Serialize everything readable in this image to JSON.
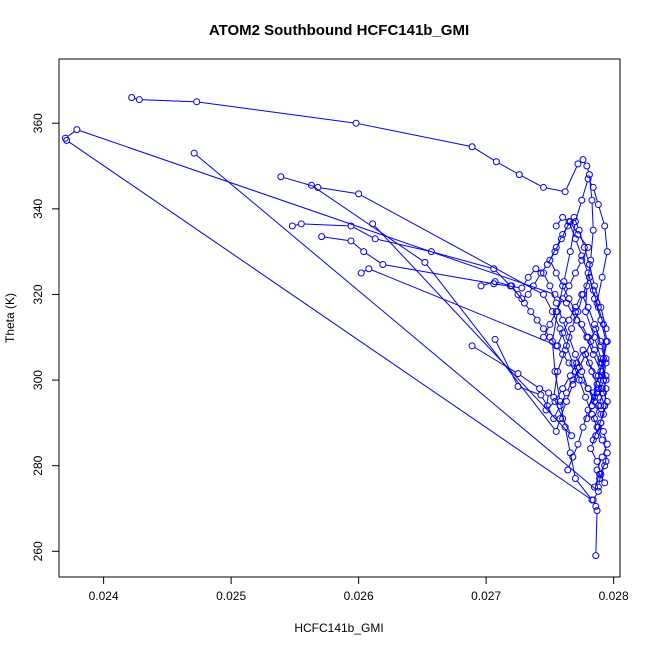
{
  "chart_data": {
    "type": "line",
    "title": "ATOM2 Southbound HCFC141b_GMI",
    "xlabel": "HCFC141b_GMI",
    "ylabel": "Theta (K)",
    "xlim": [
      0.02365,
      0.02805
    ],
    "ylim": [
      254,
      375
    ],
    "x_ticks": [
      0.024,
      0.025,
      0.026,
      0.027,
      0.028
    ],
    "x_tick_labels": [
      "0.024",
      "0.025",
      "0.026",
      "0.027",
      "0.028"
    ],
    "y_ticks": [
      260,
      280,
      300,
      320,
      340,
      360
    ],
    "y_tick_labels": [
      "260",
      "280",
      "300",
      "320",
      "340",
      "360"
    ],
    "series_color": "#0000ff",
    "series": [
      {
        "x": [
          0.02422,
          0.02428,
          0.02473,
          0.02598,
          0.02689,
          0.02708,
          0.02726,
          0.02745,
          0.02762,
          0.02772,
          0.02776,
          0.02779,
          0.02781,
          0.02783,
          0.02784,
          0.02782,
          0.02779,
          0.02778,
          0.02785,
          0.0279,
          0.02794,
          0.02792,
          0.02788,
          0.02785,
          0.02792,
          0.02795,
          0.02791,
          0.02787,
          0.02793
        ],
        "y": [
          366,
          365.5,
          365,
          360,
          354.5,
          351,
          348,
          345,
          344,
          350.5,
          351.5,
          350,
          348,
          342,
          335,
          328,
          322,
          316,
          310,
          305,
          300,
          297,
          294,
          291,
          288,
          285,
          282,
          279,
          276
        ]
      },
      {
        "x": [
          0.0237,
          0.02379,
          0.02754,
          0.02763,
          0.02771,
          0.02779,
          0.02784,
          0.0279,
          0.02794,
          0.02793,
          0.0279,
          0.02786,
          0.02782,
          0.02787,
          0.0279,
          0.02788
        ],
        "y": [
          356.5,
          358.5,
          320,
          318,
          314,
          310,
          306,
          302,
          298,
          294,
          290,
          287,
          284,
          281,
          278,
          275
        ]
      },
      {
        "x": [
          0.02471,
          0.02788,
          0.02784,
          0.02786,
          0.02787,
          0.02786
        ],
        "y": [
          353,
          274,
          272,
          270.5,
          269.5,
          259
        ]
      },
      {
        "x": [
          0.02371,
          0.02783,
          0.0277,
          0.02766,
          0.02762,
          0.02758,
          0.02754,
          0.02752,
          0.02756,
          0.02761,
          0.02766,
          0.0277,
          0.02775,
          0.0278,
          0.02784,
          0.02788,
          0.02793,
          0.02795,
          0.02791,
          0.02787
        ],
        "y": [
          356,
          272,
          277,
          283,
          289,
          295,
          302,
          309,
          316,
          323,
          330,
          337,
          342,
          347,
          345,
          341,
          336,
          330,
          324,
          318
        ]
      },
      {
        "x": [
          0.02539,
          0.02568,
          0.026,
          0.02745,
          0.02752,
          0.02758,
          0.02763,
          0.02768,
          0.02773,
          0.02778,
          0.02783,
          0.02787,
          0.02791,
          0.02795,
          0.02793,
          0.02789,
          0.02785,
          0.02789,
          0.02794
        ],
        "y": [
          347.5,
          345,
          343.5,
          320,
          316,
          312,
          308,
          304,
          300,
          296,
          292,
          289,
          286,
          283,
          280,
          277,
          275,
          278,
          281
        ]
      },
      {
        "x": [
          0.02563,
          0.02652,
          0.02755,
          0.02758,
          0.02763,
          0.02768,
          0.02773,
          0.02778,
          0.02782,
          0.02786,
          0.0279,
          0.02794,
          0.02792,
          0.02788
        ],
        "y": [
          345.5,
          327.5,
          288,
          291,
          295,
          299,
          303,
          306,
          309,
          312,
          308,
          304,
          300,
          296
        ]
      },
      {
        "x": [
          0.02611,
          0.02767,
          0.0276,
          0.02753,
          0.02756,
          0.02762,
          0.02767,
          0.02772,
          0.02776,
          0.02781,
          0.02785,
          0.0279,
          0.02794,
          0.02791,
          0.02787,
          0.02783
        ],
        "y": [
          336.5,
          287,
          291,
          296,
          302,
          307,
          312,
          316,
          320,
          324,
          319,
          314,
          309,
          304,
          299,
          294
        ]
      },
      {
        "x": [
          0.02548,
          0.02555,
          0.02594,
          0.02613,
          0.02657,
          0.02706,
          0.02719,
          0.02728,
          0.02733,
          0.02737,
          0.02743,
          0.02748,
          0.02754,
          0.02759,
          0.02764,
          0.02769,
          0.02773,
          0.02777,
          0.02781,
          0.02785,
          0.0279,
          0.02794
        ],
        "y": [
          336,
          336.5,
          336,
          333,
          330,
          326,
          322,
          319,
          320,
          322,
          325,
          327,
          330,
          333,
          336,
          338,
          335,
          331,
          327,
          322,
          317,
          312
        ]
      },
      {
        "x": [
          0.02571,
          0.02594,
          0.02604,
          0.02619,
          0.02706,
          0.02728,
          0.02733,
          0.02739,
          0.02745,
          0.0275,
          0.02755,
          0.0276,
          0.02765,
          0.0277,
          0.02775,
          0.0278,
          0.02785,
          0.0279
        ],
        "y": [
          333.5,
          332.5,
          330,
          327,
          322.5,
          321.5,
          324,
          326,
          325,
          322,
          318,
          314,
          310,
          306,
          302,
          298,
          295,
          292
        ]
      },
      {
        "x": [
          0.02602,
          0.02608,
          0.02756,
          0.0276,
          0.02765,
          0.0277,
          0.02775,
          0.0278,
          0.02785,
          0.0279,
          0.02794,
          0.02791,
          0.02787,
          0.02783,
          0.02779
        ],
        "y": [
          325,
          326,
          308,
          311,
          314,
          317,
          320,
          317,
          313,
          309,
          305,
          301,
          297,
          294,
          291
        ]
      },
      {
        "x": [
          0.02689,
          0.02725,
          0.02742,
          0.02749,
          0.02747,
          0.02754,
          0.0276,
          0.02766,
          0.02771,
          0.02776,
          0.02781,
          0.02786,
          0.02791,
          0.02795,
          0.02792,
          0.02788,
          0.02784
        ],
        "y": [
          308,
          301.5,
          298,
          297,
          293,
          295,
          298,
          301,
          304,
          307,
          304,
          301,
          298,
          295,
          292,
          289,
          286
        ]
      },
      {
        "x": [
          0.02707,
          0.02725,
          0.02743,
          0.02748,
          0.02753,
          0.02758,
          0.02763,
          0.02768,
          0.02773,
          0.02778,
          0.02783,
          0.02788,
          0.02793,
          0.0279,
          0.02786
        ],
        "y": [
          309.5,
          298.5,
          296.5,
          294,
          291,
          294,
          297,
          300,
          303,
          306,
          302,
          298,
          294,
          290,
          287
        ]
      },
      {
        "x": [
          0.02696,
          0.02707,
          0.0272,
          0.02725,
          0.0273,
          0.02735,
          0.0274,
          0.02745,
          0.0275,
          0.02755,
          0.0276,
          0.02765,
          0.0277,
          0.02775,
          0.0278,
          0.02785,
          0.0279
        ],
        "y": [
          322,
          323,
          322,
          320,
          318,
          316,
          314,
          312,
          310,
          308,
          306,
          304,
          302,
          300,
          298,
          296,
          294
        ]
      },
      {
        "x": [
          0.02745,
          0.0275,
          0.02755,
          0.0276,
          0.02765,
          0.0277,
          0.02775,
          0.0278,
          0.02772,
          0.02766,
          0.0276,
          0.02755,
          0.0275,
          0.02755,
          0.0276,
          0.02765,
          0.0277,
          0.02775,
          0.0278,
          0.02785,
          0.0279,
          0.02794
        ],
        "y": [
          310,
          313,
          316,
          319,
          322,
          325,
          328,
          331,
          334,
          337,
          334,
          331,
          328,
          325,
          322,
          319,
          316,
          313,
          310,
          307,
          304,
          301
        ]
      },
      {
        "x": [
          0.02755,
          0.0276,
          0.02765,
          0.0277,
          0.02775,
          0.0278,
          0.02784,
          0.02788,
          0.02792,
          0.02795,
          0.02792,
          0.02788,
          0.02784,
          0.0278,
          0.02776,
          0.02772,
          0.02768,
          0.02764
        ],
        "y": [
          336,
          338,
          337,
          333,
          329,
          325,
          321,
          317,
          313,
          309,
          305,
          301,
          297,
          293,
          289,
          285,
          282,
          279
        ]
      }
    ]
  }
}
